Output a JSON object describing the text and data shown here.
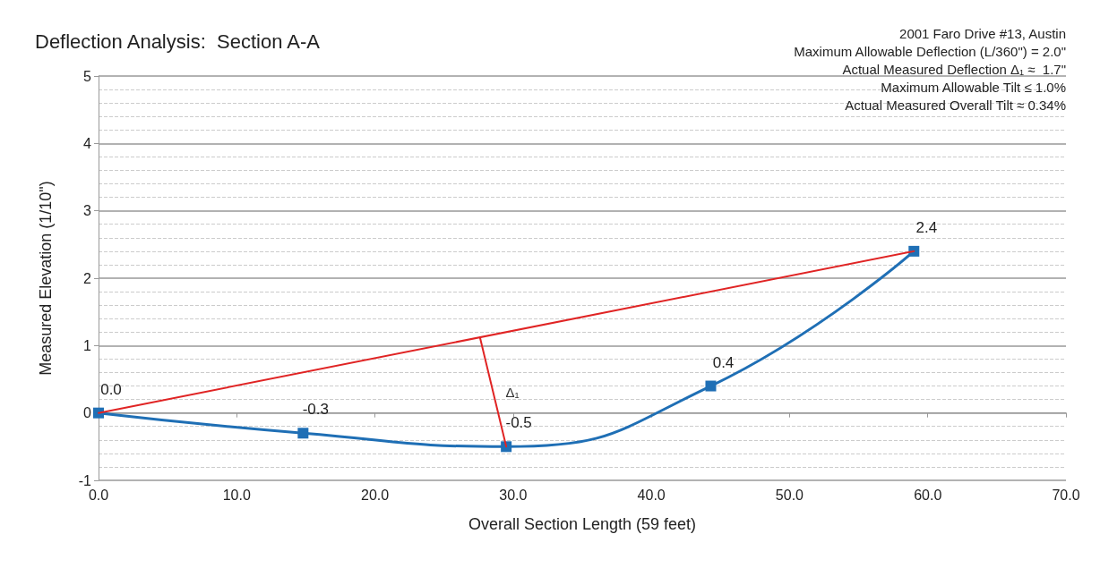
{
  "chart_data": {
    "type": "line",
    "title": "Deflection Analysis:  Section A-A",
    "xlabel": "Overall Section Length (59 feet)",
    "ylabel": "Measured Elevation (1/10\")",
    "annotations": [
      "2001 Faro Drive #13, Austin",
      "Maximum Allowable Deflection (L/360\") = 2.0\"",
      "Actual Measured Deflection Δ₁ ≈  1.7\"",
      "Maximum Allowable Tilt ≤ 1.0%",
      "Actual Measured Overall Tilt ≈ 0.34%",
      "Δ₁"
    ],
    "series": [
      {
        "color": "#1f6fb5",
        "x": [
          0,
          14.8,
          29.5,
          44.3,
          59
        ],
        "values": [
          0,
          -0.3,
          -0.5,
          0.4,
          2.4
        ],
        "marker": "square",
        "value_labels": [
          "0.0",
          "-0.3",
          "-0.5",
          "0.4",
          "2.4"
        ]
      },
      {
        "color": "#e02424",
        "x": [
          0,
          59
        ],
        "values": [
          0,
          2.4
        ],
        "marker": "none"
      },
      {
        "color": "#e02424",
        "x": [
          27.6,
          29.5
        ],
        "values": [
          1.12,
          -0.5
        ],
        "marker": "none"
      }
    ],
    "xlim": [
      0,
      70
    ],
    "ylim": [
      -1,
      5
    ],
    "xticks": [
      {
        "value": 0,
        "label": "0.0"
      },
      {
        "value": 10,
        "label": "10.0"
      },
      {
        "value": 20,
        "label": "20.0"
      },
      {
        "value": 30,
        "label": "30.0"
      },
      {
        "value": 40,
        "label": "40.0"
      },
      {
        "value": 50,
        "label": "50.0"
      },
      {
        "value": 60,
        "label": "60.0"
      },
      {
        "value": 70,
        "label": "70.0"
      }
    ],
    "yticks": [
      -1,
      0,
      1,
      2,
      3,
      4,
      5
    ],
    "grid": "y",
    "line_style": "solid"
  }
}
